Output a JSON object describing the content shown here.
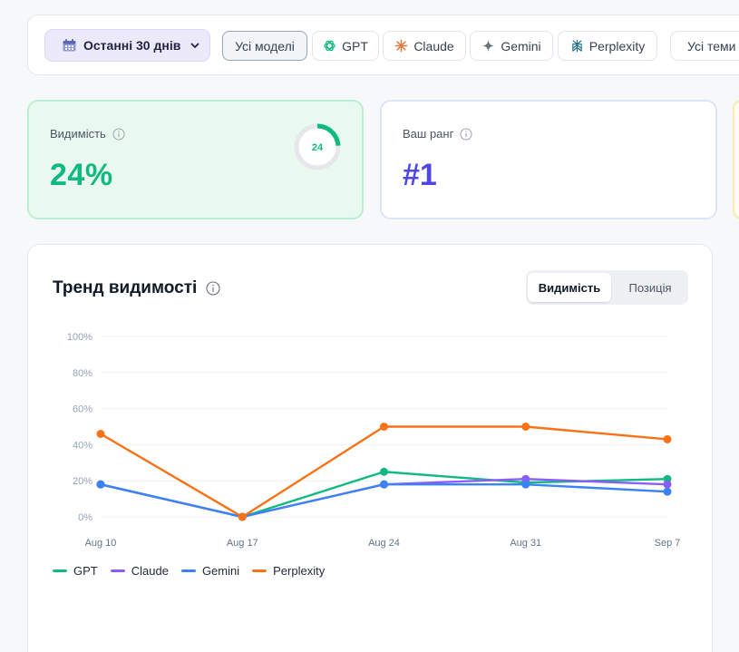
{
  "filters": {
    "date_range": "Останні 30 днів",
    "models": [
      {
        "label": "Усі моделі",
        "icon": "",
        "active": true
      },
      {
        "label": "GPT",
        "icon": "openai-icon",
        "active": false
      },
      {
        "label": "Claude",
        "icon": "claude-icon",
        "active": false
      },
      {
        "label": "Gemini",
        "icon": "gemini-icon",
        "active": false
      },
      {
        "label": "Perplexity",
        "icon": "perplexity-icon",
        "active": false
      }
    ],
    "topics": "Усі теми"
  },
  "metrics": {
    "visibility": {
      "label": "Видимість",
      "value": "24%",
      "ring_value": "24",
      "ring_fraction": 0.24
    },
    "rank": {
      "label": "Ваш ранг",
      "value": "#1"
    }
  },
  "chart": {
    "title": "Тренд видимості",
    "toggle": {
      "active": "Видимість",
      "inactive": "Позиція"
    }
  },
  "colors": {
    "gpt": "#10b981",
    "claude": "#8b5cf6",
    "gemini": "#3b82f6",
    "perplexity": "#f97316"
  },
  "chart_data": {
    "type": "line",
    "categories": [
      "Aug 10",
      "Aug 17",
      "Aug 24",
      "Aug 31",
      "Sep 7"
    ],
    "y_ticks": [
      "0%",
      "20%",
      "40%",
      "60%",
      "80%",
      "100%"
    ],
    "ylim": [
      0,
      100
    ],
    "grid": true,
    "legend": "bottom-left",
    "series": [
      {
        "name": "GPT",
        "color": "#10b981",
        "values": [
          18,
          0,
          25,
          19,
          21
        ]
      },
      {
        "name": "Claude",
        "color": "#8b5cf6",
        "values": [
          18,
          0,
          18,
          21,
          18
        ]
      },
      {
        "name": "Gemini",
        "color": "#3b82f6",
        "values": [
          18,
          0,
          18,
          18,
          14
        ]
      },
      {
        "name": "Perplexity",
        "color": "#f97316",
        "values": [
          46,
          0,
          50,
          50,
          43
        ]
      }
    ]
  }
}
